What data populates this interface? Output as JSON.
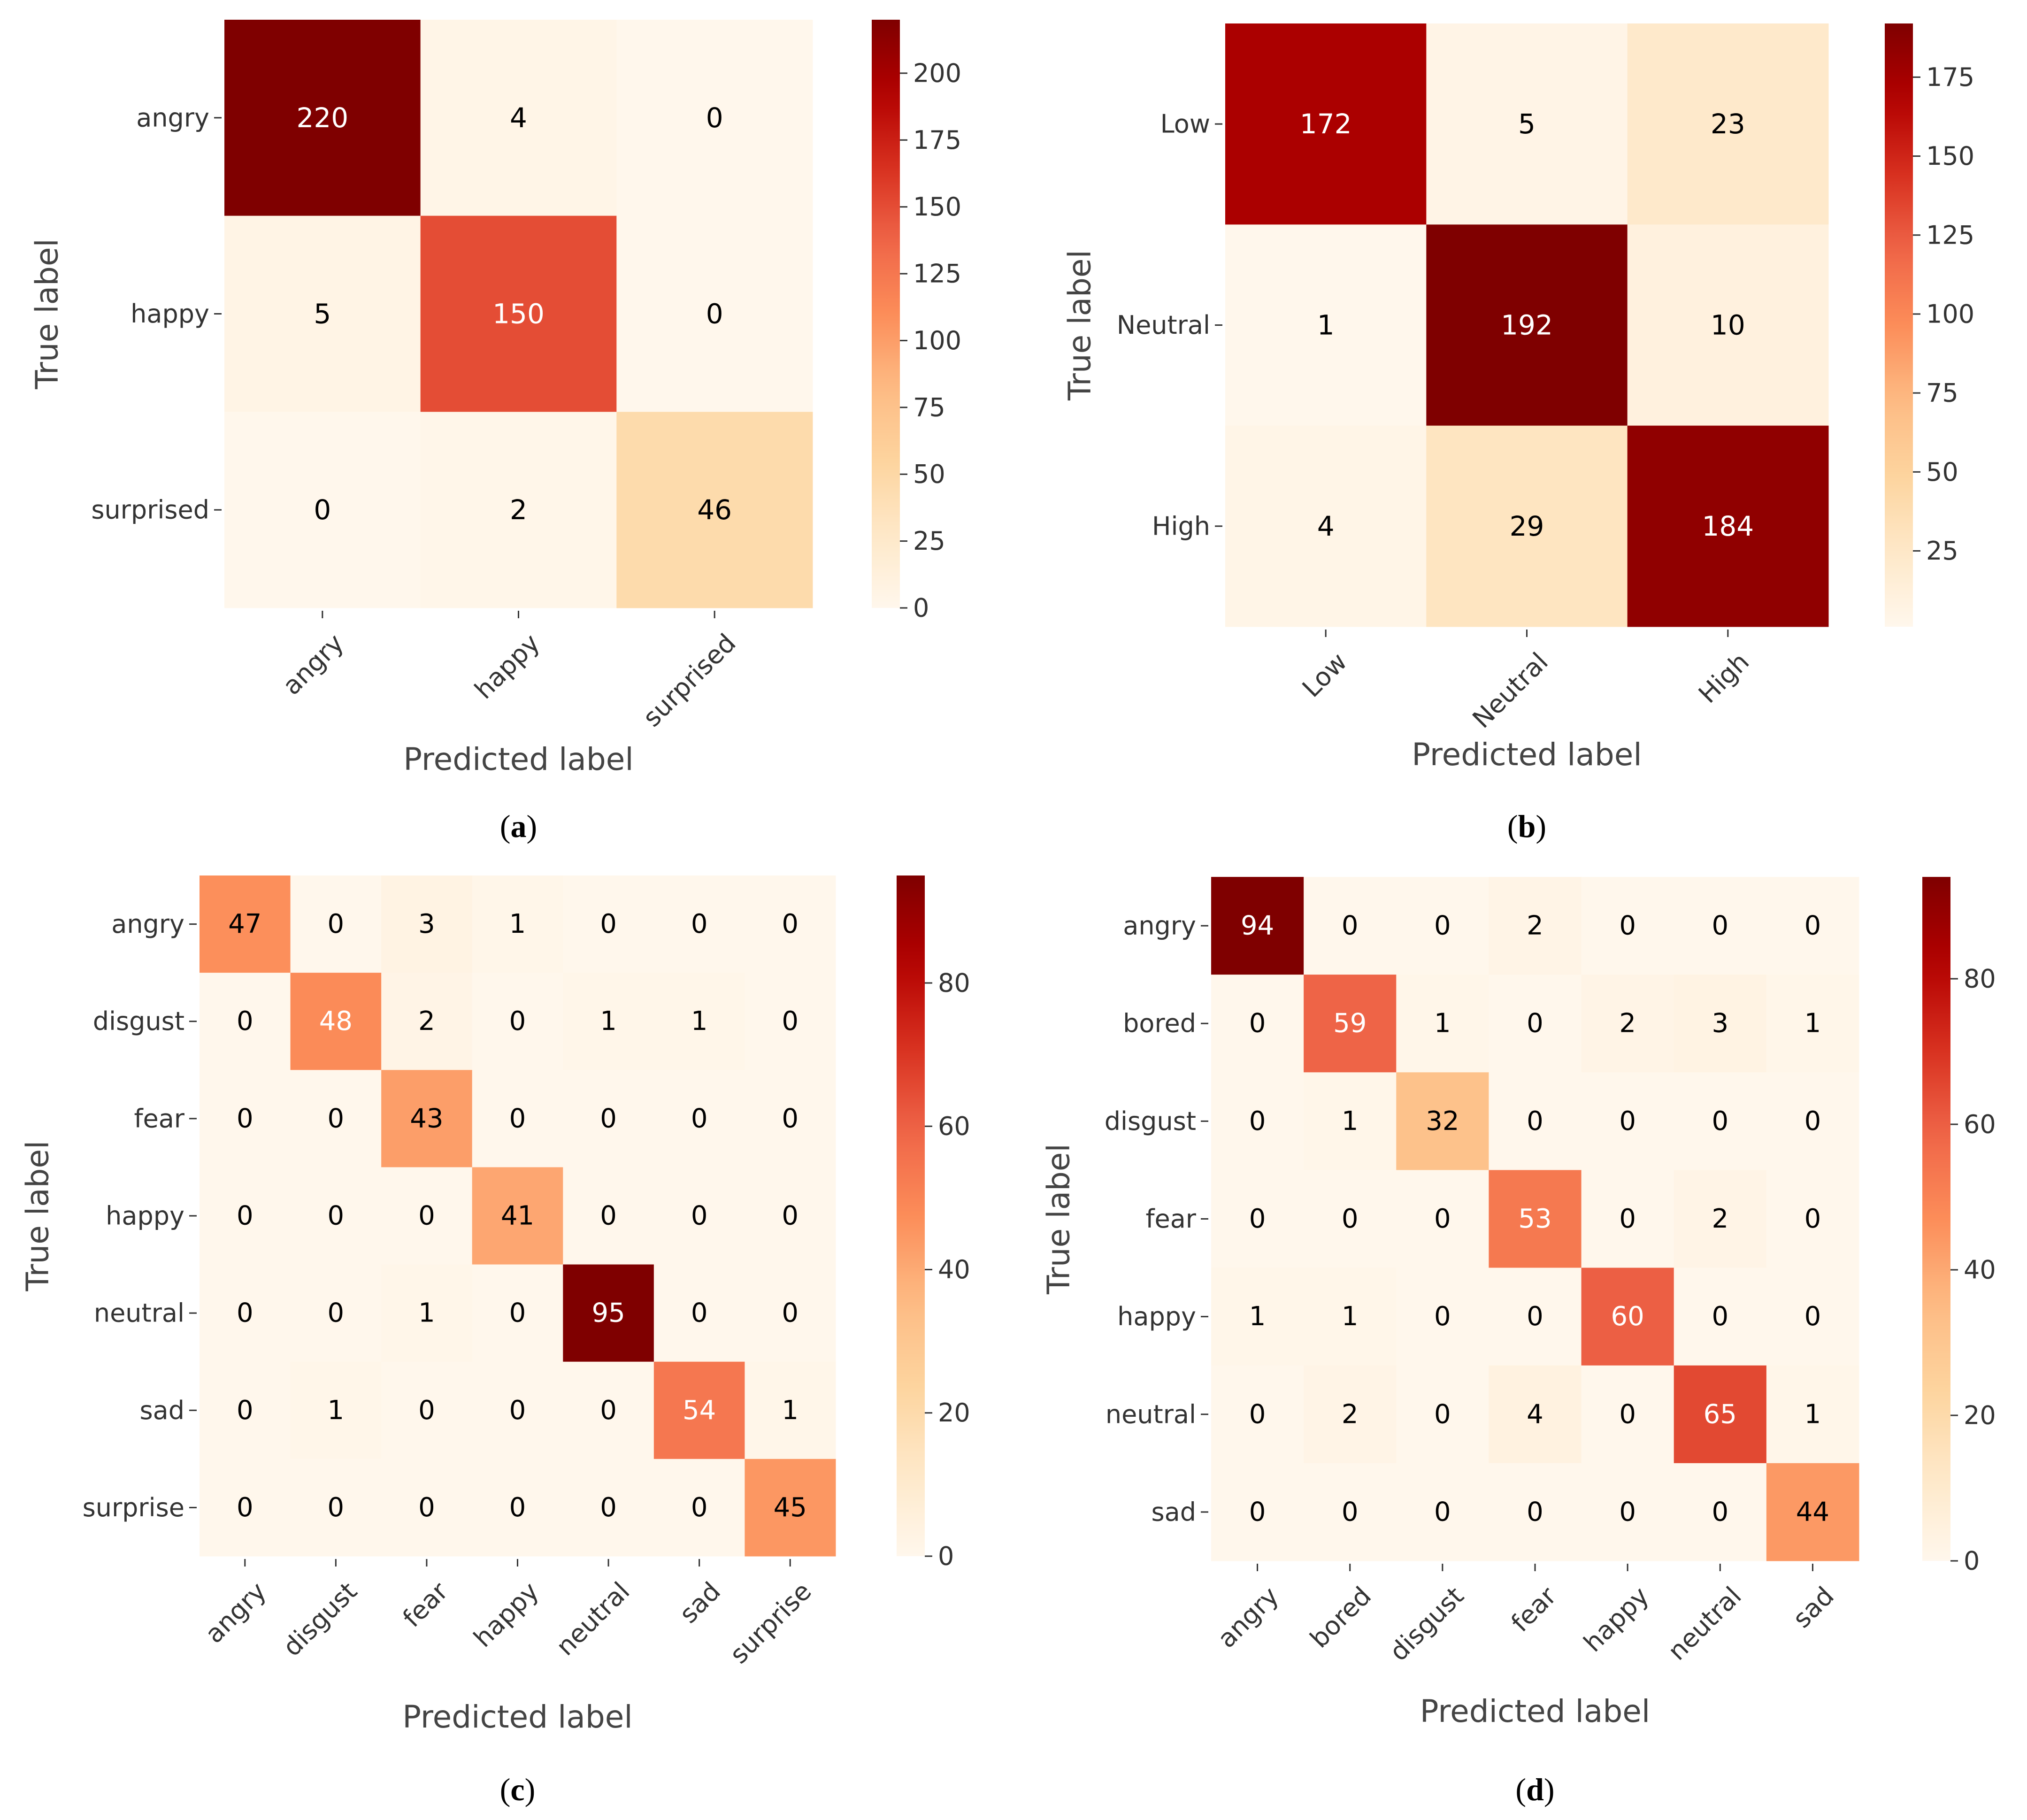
{
  "chart_data": [
    {
      "type": "heatmap",
      "panel_label": "(a)",
      "classes": [
        "angry",
        "happy",
        "surprised"
      ],
      "matrix": [
        [
          220,
          4,
          0
        ],
        [
          5,
          150,
          0
        ],
        [
          0,
          2,
          46
        ]
      ],
      "xlabel": "Predicted label",
      "ylabel": "True label",
      "colorbar": {
        "vmin": 0,
        "vmax": 220,
        "ticks": [
          0,
          25,
          50,
          75,
          100,
          125,
          150,
          175,
          200
        ]
      }
    },
    {
      "type": "heatmap",
      "panel_label": "(b)",
      "classes": [
        "Low",
        "Neutral",
        "High"
      ],
      "matrix": [
        [
          172,
          5,
          23
        ],
        [
          1,
          192,
          10
        ],
        [
          4,
          29,
          184
        ]
      ],
      "xlabel": "Predicted label",
      "ylabel": "True label",
      "colorbar": {
        "vmin": 1,
        "vmax": 192,
        "ticks": [
          25,
          50,
          75,
          100,
          125,
          150,
          175
        ]
      }
    },
    {
      "type": "heatmap",
      "panel_label": "(c)",
      "classes": [
        "angry",
        "disgust",
        "fear",
        "happy",
        "neutral",
        "sad",
        "surprise"
      ],
      "matrix": [
        [
          47,
          0,
          3,
          1,
          0,
          0,
          0
        ],
        [
          0,
          48,
          2,
          0,
          1,
          1,
          0
        ],
        [
          0,
          0,
          43,
          0,
          0,
          0,
          0
        ],
        [
          0,
          0,
          0,
          41,
          0,
          0,
          0
        ],
        [
          0,
          0,
          1,
          0,
          95,
          0,
          0
        ],
        [
          0,
          1,
          0,
          0,
          0,
          54,
          1
        ],
        [
          0,
          0,
          0,
          0,
          0,
          0,
          45
        ]
      ],
      "xlabel": "Predicted label",
      "ylabel": "True label",
      "colorbar": {
        "vmin": 0,
        "vmax": 95,
        "ticks": [
          0,
          20,
          40,
          60,
          80
        ]
      }
    },
    {
      "type": "heatmap",
      "panel_label": "(d)",
      "classes": [
        "angry",
        "bored",
        "disgust",
        "fear",
        "happy",
        "neutral",
        "sad"
      ],
      "matrix": [
        [
          94,
          0,
          0,
          2,
          0,
          0,
          0
        ],
        [
          0,
          59,
          1,
          0,
          2,
          3,
          1
        ],
        [
          0,
          1,
          32,
          0,
          0,
          0,
          0
        ],
        [
          0,
          0,
          0,
          53,
          0,
          2,
          0
        ],
        [
          1,
          1,
          0,
          0,
          60,
          0,
          0
        ],
        [
          0,
          2,
          0,
          4,
          0,
          65,
          1
        ],
        [
          0,
          0,
          0,
          0,
          0,
          0,
          44
        ]
      ],
      "xlabel": "Predicted label",
      "ylabel": "True label",
      "colorbar": {
        "vmin": 0,
        "vmax": 94,
        "ticks": [
          0,
          20,
          40,
          60,
          80
        ]
      }
    }
  ]
}
